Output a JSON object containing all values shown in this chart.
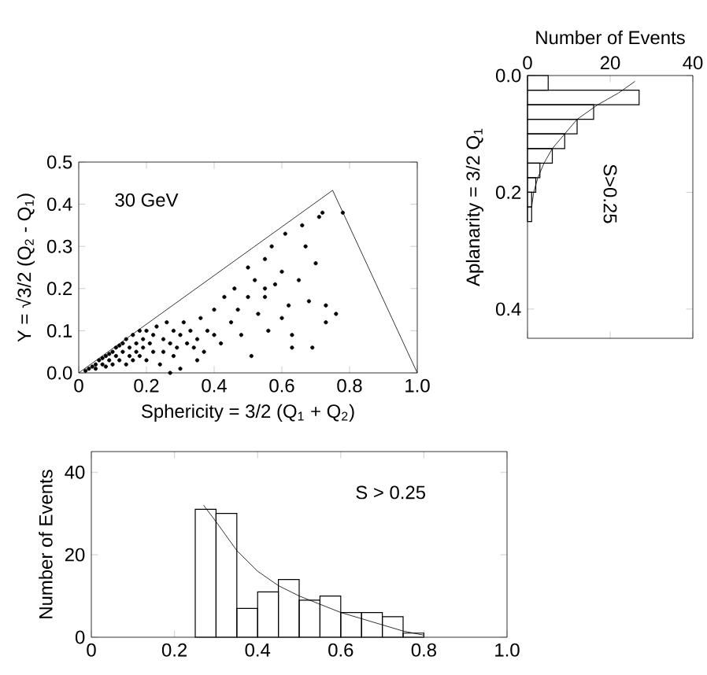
{
  "chart_data": [
    {
      "type": "scatter",
      "xlabel": "Sphericity = 3/2 (Q$_{1}$ + Q$_{2}$)",
      "ylabel": "Y = √3/2 (Q$_{2}$ - Q$_{1}$)",
      "annotations": [
        "30 GeV"
      ],
      "color": "#000000",
      "xlim": [
        0,
        1
      ],
      "ylim": [
        0,
        0.5
      ],
      "xticks": [
        0,
        0.2,
        0.4,
        0.6,
        0.8,
        {
          "value": 1,
          "label": "1.0"
        }
      ],
      "yticks": [
        {
          "value": 0,
          "label": "0.0"
        },
        0.1,
        0.2,
        0.3,
        0.4,
        0.5
      ],
      "series": [
        {
          "type": "scatter",
          "marker": "circle",
          "x": [
            0.02,
            0.03,
            0.04,
            0.05,
            0.05,
            0.06,
            0.07,
            0.07,
            0.08,
            0.08,
            0.09,
            0.09,
            0.1,
            0.1,
            0.11,
            0.11,
            0.12,
            0.12,
            0.13,
            0.13,
            0.14,
            0.14,
            0.15,
            0.15,
            0.16,
            0.16,
            0.17,
            0.17,
            0.18,
            0.18,
            0.19,
            0.19,
            0.2,
            0.2,
            0.21,
            0.22,
            0.22,
            0.23,
            0.24,
            0.25,
            0.25,
            0.26,
            0.27,
            0.28,
            0.28,
            0.29,
            0.3,
            0.3,
            0.31,
            0.32,
            0.33,
            0.34,
            0.35,
            0.36,
            0.37,
            0.38,
            0.4,
            0.4,
            0.42,
            0.43,
            0.45,
            0.46,
            0.47,
            0.48,
            0.5,
            0.5,
            0.51,
            0.52,
            0.53,
            0.55,
            0.55,
            0.56,
            0.57,
            0.58,
            0.6,
            0.6,
            0.61,
            0.62,
            0.63,
            0.63,
            0.65,
            0.66,
            0.67,
            0.68,
            0.69,
            0.7,
            0.71,
            0.72,
            0.73,
            0.73,
            0.76,
            0.78,
            0.55,
            0.35,
            0.27
          ],
          "values": [
            0.005,
            0.01,
            0.015,
            0.02,
            0.01,
            0.03,
            0.02,
            0.035,
            0.04,
            0.015,
            0.03,
            0.045,
            0.05,
            0.02,
            0.04,
            0.06,
            0.03,
            0.065,
            0.05,
            0.07,
            0.02,
            0.08,
            0.06,
            0.04,
            0.09,
            0.03,
            0.07,
            0.05,
            0.1,
            0.04,
            0.08,
            0.06,
            0.1,
            0.03,
            0.07,
            0.09,
            0.05,
            0.11,
            0.02,
            0.08,
            0.05,
            0.12,
            0.07,
            0.1,
            0.04,
            0.06,
            0.09,
            0.01,
            0.12,
            0.07,
            0.1,
            0.06,
            0.08,
            0.13,
            0.05,
            0.1,
            0.15,
            0.09,
            0.07,
            0.18,
            0.12,
            0.2,
            0.15,
            0.09,
            0.18,
            0.25,
            0.04,
            0.22,
            0.14,
            0.27,
            0.18,
            0.1,
            0.3,
            0.21,
            0.24,
            0.13,
            0.33,
            0.16,
            0.09,
            0.06,
            0.22,
            0.35,
            0.3,
            0.17,
            0.06,
            0.26,
            0.37,
            0.38,
            0.16,
            0.12,
            0.14,
            0.38,
            0.2,
            0.03,
            0.0
          ]
        },
        {
          "type": "line",
          "x": [
            0,
            0.75,
            1
          ],
          "values": [
            0,
            0.433,
            0
          ]
        }
      ]
    },
    {
      "type": "histogram",
      "orientation": "horizontal",
      "xlabel": "Number of Events",
      "ylabel": "Aplanarity = 3/2 Q$_{1}$",
      "annotations": [
        "S>0.25"
      ],
      "color": "#000000",
      "xlim": [
        0,
        40
      ],
      "ylim": [
        0.45,
        0
      ],
      "xticks": [
        0,
        20,
        40
      ],
      "yticks": [
        {
          "value": 0,
          "label": "0.0"
        },
        0.2,
        0.4
      ],
      "bins": [
        0,
        0.025,
        0.05,
        0.075,
        0.1,
        0.125,
        0.15,
        0.175,
        0.2,
        0.225,
        0.25
      ],
      "values": [
        5,
        27,
        16,
        12,
        9,
        6,
        3,
        2,
        1,
        1
      ],
      "series": [
        {
          "type": "line",
          "x": [
            0.01,
            0.03,
            0.05,
            0.075,
            0.1,
            0.125,
            0.15,
            0.175,
            0.2,
            0.225
          ],
          "values": [
            26,
            22,
            17,
            12,
            9,
            6,
            4,
            2.5,
            1.5,
            1
          ]
        }
      ]
    },
    {
      "type": "histogram",
      "ylabel": "Number of Events",
      "annotations": [
        "S > 0.25"
      ],
      "color": "#000000",
      "xlim": [
        0,
        1
      ],
      "ylim": [
        0,
        45
      ],
      "xticks": [
        0,
        0.2,
        0.4,
        0.6,
        0.8,
        {
          "value": 1,
          "label": "1.0"
        }
      ],
      "yticks": [
        0,
        20,
        40
      ],
      "bins": [
        0.25,
        0.3,
        0.35,
        0.4,
        0.45,
        0.5,
        0.55,
        0.6,
        0.65,
        0.7,
        0.75,
        0.8
      ],
      "values": [
        31,
        30,
        7,
        11,
        14,
        9,
        10,
        6,
        6,
        5,
        1
      ],
      "series": [
        {
          "type": "line",
          "x": [
            0.27,
            0.3,
            0.35,
            0.4,
            0.45,
            0.5,
            0.55,
            0.6,
            0.65,
            0.7,
            0.75,
            0.8
          ],
          "values": [
            32,
            28,
            21,
            16,
            12.5,
            10,
            8,
            6,
            4.5,
            3,
            1.5,
            0.5
          ]
        }
      ]
    }
  ]
}
